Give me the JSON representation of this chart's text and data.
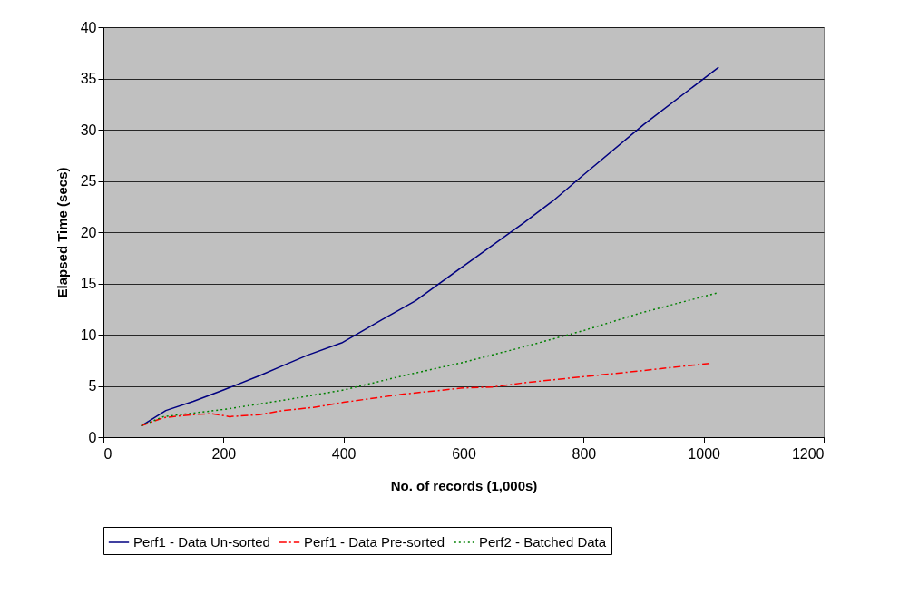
{
  "chart_data": {
    "type": "line",
    "xlabel": "No. of records (1,000s)",
    "ylabel": "Elapsed Time (secs)",
    "xlim": [
      0,
      1200
    ],
    "xticks": [
      0,
      200,
      400,
      600,
      800,
      1000,
      1200
    ],
    "ylim": [
      0,
      40
    ],
    "yticks": [
      0,
      5,
      10,
      15,
      20,
      25,
      30,
      35,
      40
    ],
    "grid": "y",
    "legend": "bottom",
    "marker": "none",
    "series": [
      {
        "name": "Perf1 - Data Un-sorted",
        "color": "#000080",
        "line_style": "solid",
        "x": [
          63,
          104,
          150,
          200,
          260,
          300,
          340,
          397,
          465,
          520,
          600,
          700,
          750,
          800,
          900,
          1025
        ],
        "values": [
          1.1,
          2.6,
          3.5,
          4.6,
          6.0,
          7.0,
          8.0,
          9.2,
          11.5,
          13.3,
          16.7,
          20.9,
          23.1,
          25.6,
          30.5,
          36.1
        ]
      },
      {
        "name": "Perf1 - Data Pre-sorted",
        "color": "#ff0000",
        "line_style": "dashdot",
        "x": [
          63,
          100,
          150,
          180,
          210,
          260,
          300,
          350,
          400,
          500,
          600,
          650,
          700,
          750,
          800,
          900,
          1010
        ],
        "values": [
          1.1,
          1.9,
          2.2,
          2.3,
          2.0,
          2.2,
          2.6,
          2.9,
          3.4,
          4.2,
          4.8,
          4.9,
          5.3,
          5.6,
          5.9,
          6.5,
          7.2
        ]
      },
      {
        "name": "Perf2 - Batched Data",
        "color": "#008000",
        "line_style": "dotted",
        "x": [
          63,
          100,
          200,
          300,
          400,
          500,
          600,
          700,
          800,
          900,
          1025
        ],
        "values": [
          1.1,
          2.0,
          2.7,
          3.6,
          4.6,
          6.0,
          7.3,
          8.8,
          10.4,
          12.2,
          14.1
        ]
      }
    ]
  }
}
